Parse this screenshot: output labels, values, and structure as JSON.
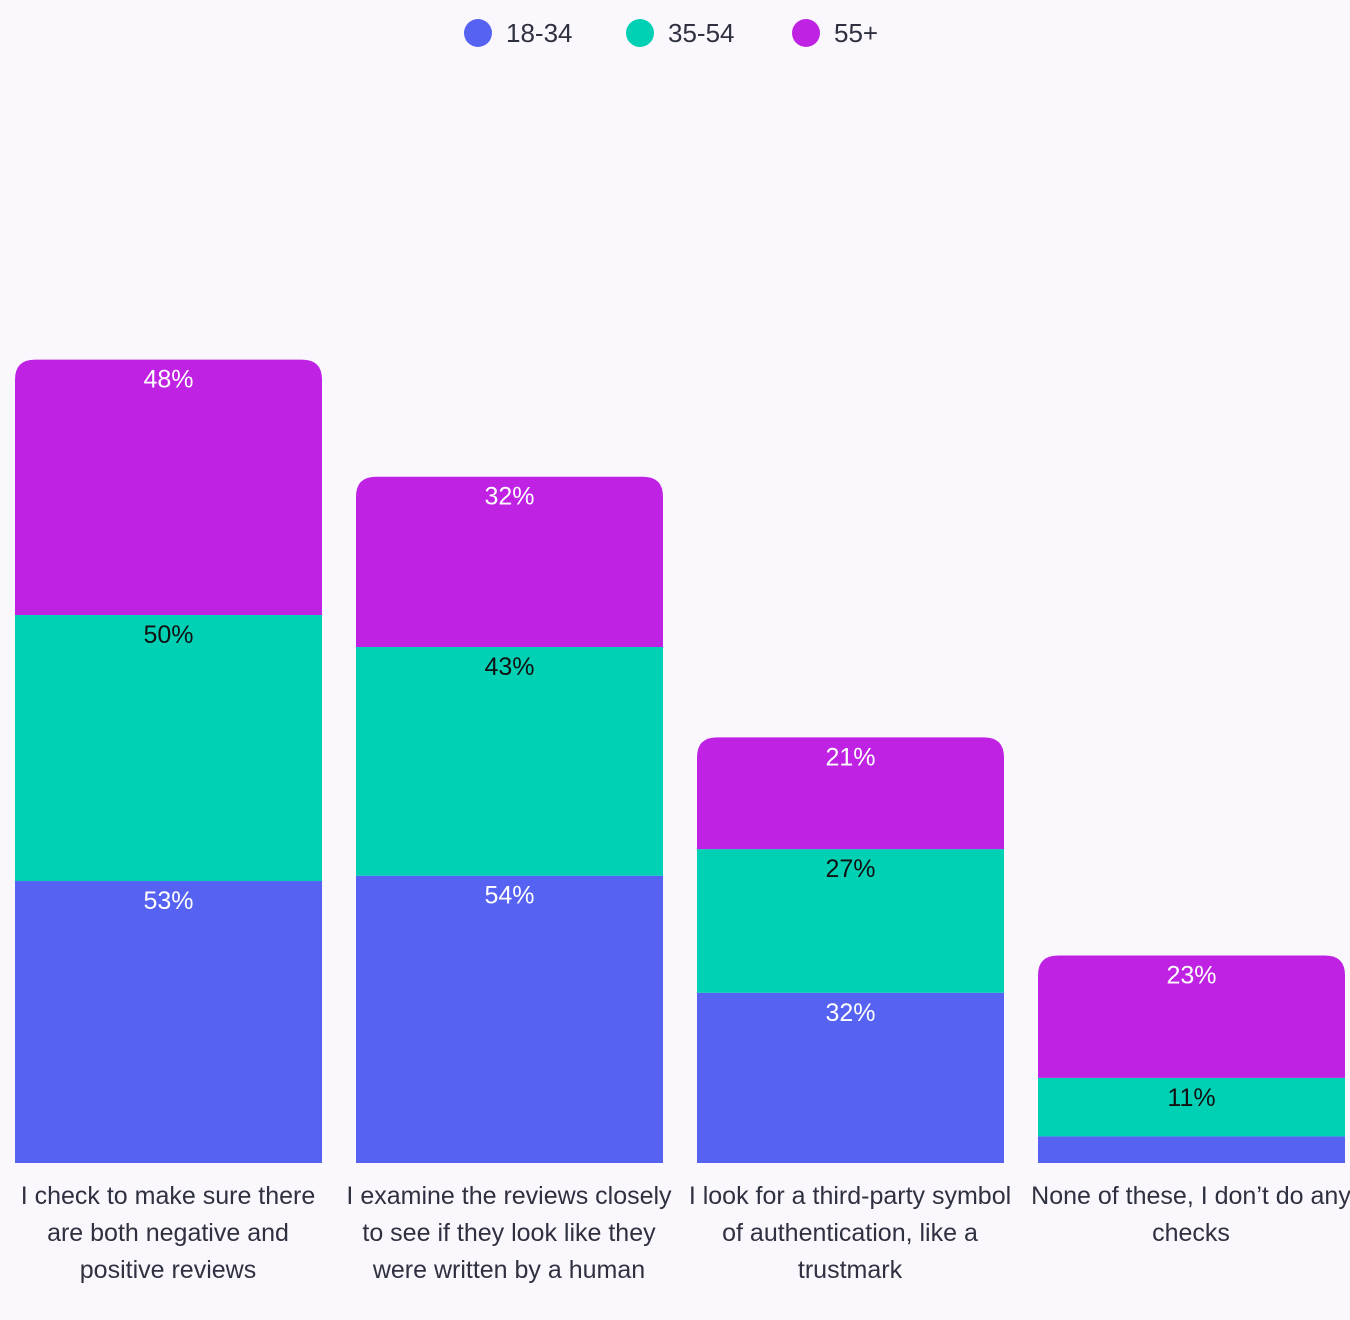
{
  "chart_data": {
    "type": "bar",
    "stacked": true,
    "categories": [
      "I check to make sure there are both negative and positive reviews",
      "I examine the reviews closely to see if they look like they were written by a human",
      "I look for a third-party symbol of authentication, like a trustmark",
      "None of these, I don’t do any checks"
    ],
    "series": [
      {
        "name": "18-34",
        "color": "#5562f2",
        "values": [
          53,
          54,
          32,
          5
        ],
        "labels": [
          "53%",
          "54%",
          "32%",
          ""
        ]
      },
      {
        "name": "35-54",
        "color": "#00d1b5",
        "values": [
          50,
          43,
          27,
          11
        ],
        "labels": [
          "50%",
          "43%",
          "27%",
          "11%"
        ]
      },
      {
        "name": "55+",
        "color": "#bf22e3",
        "values": [
          48,
          32,
          21,
          23
        ],
        "labels": [
          "48%",
          "32%",
          "21%",
          "23%"
        ]
      }
    ],
    "legend_position": "top-center",
    "grid": false
  }
}
